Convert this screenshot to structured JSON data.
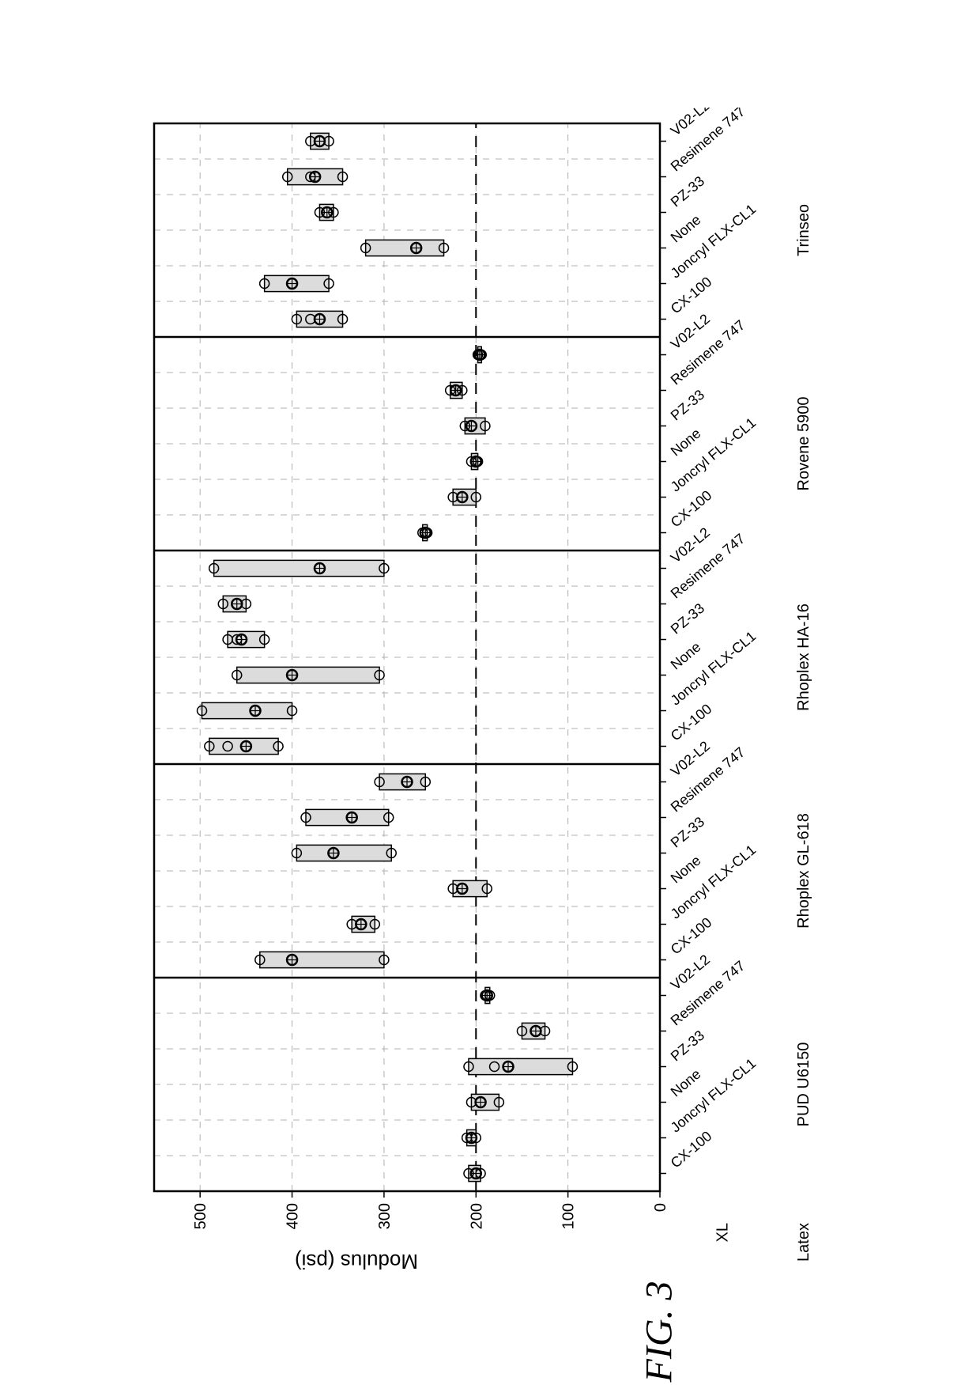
{
  "figure_label": "FIG. 3",
  "chart": {
    "type": "boxplot",
    "ylabel": "Modulus (psi)",
    "row_labels": [
      "XL",
      "Latex"
    ],
    "ylim": [
      0,
      550
    ],
    "ytick_step": 100,
    "yticks": [
      0,
      100,
      200,
      300,
      400,
      500
    ],
    "reference_line": 200,
    "grid_color": "#b0b0b0",
    "panel_border_color": "#000000",
    "panel_bg": "#ffffff",
    "box_fill": "#dcdcdc",
    "box_stroke": "#000000",
    "point_stroke": "#000000",
    "point_fill": "none",
    "tick_fontsize": 20,
    "label_fontsize": 26,
    "xl_labels": [
      "CX-100",
      "Joncryl FLX-CL1",
      "None",
      "PZ-33",
      "Resimene 747",
      "V02-L2"
    ],
    "latex_groups": [
      {
        "name": "PUD U6150",
        "count": 6
      },
      {
        "name": "Rhoplex GL-618",
        "count": 6
      },
      {
        "name": "Rhoplex HA-16",
        "count": 6
      },
      {
        "name": "Rovene 5900",
        "count": 6
      },
      {
        "name": "Trinseo",
        "count": 6
      }
    ],
    "series": [
      {
        "group": "PUD U6150",
        "xl": "CX-100",
        "q1": 195,
        "med": 200,
        "q3": 208,
        "pts": [
          195,
          200,
          208
        ]
      },
      {
        "group": "PUD U6150",
        "xl": "Joncryl FLX-CL1",
        "q1": 200,
        "med": 205,
        "q3": 210,
        "pts": [
          200,
          205,
          210
        ]
      },
      {
        "group": "PUD U6150",
        "xl": "None",
        "q1": 175,
        "med": 195,
        "q3": 205,
        "pts": [
          175,
          195,
          205
        ]
      },
      {
        "group": "PUD U6150",
        "xl": "PZ-33",
        "q1": 95,
        "med": 165,
        "q3": 208,
        "pts": [
          95,
          165,
          180,
          208
        ]
      },
      {
        "group": "PUD U6150",
        "xl": "Resimene 747",
        "q1": 125,
        "med": 135,
        "q3": 150,
        "pts": [
          125,
          135,
          150
        ]
      },
      {
        "group": "PUD U6150",
        "xl": "V02-L2",
        "q1": 185,
        "med": 188,
        "q3": 190,
        "pts": [
          185,
          188,
          190
        ]
      },
      {
        "group": "Rhoplex GL-618",
        "xl": "CX-100",
        "q1": 300,
        "med": 400,
        "q3": 435,
        "pts": [
          300,
          400,
          435
        ]
      },
      {
        "group": "Rhoplex GL-618",
        "xl": "Joncryl FLX-CL1",
        "q1": 310,
        "med": 325,
        "q3": 335,
        "pts": [
          310,
          325,
          335
        ]
      },
      {
        "group": "Rhoplex GL-618",
        "xl": "None",
        "q1": 188,
        "med": 215,
        "q3": 225,
        "pts": [
          188,
          215,
          225
        ]
      },
      {
        "group": "Rhoplex GL-618",
        "xl": "PZ-33",
        "q1": 292,
        "med": 355,
        "q3": 395,
        "pts": [
          292,
          355,
          395
        ]
      },
      {
        "group": "Rhoplex GL-618",
        "xl": "Resimene 747",
        "q1": 295,
        "med": 335,
        "q3": 385,
        "pts": [
          295,
          335,
          385
        ]
      },
      {
        "group": "Rhoplex GL-618",
        "xl": "V02-L2",
        "q1": 255,
        "med": 275,
        "q3": 305,
        "pts": [
          255,
          275,
          305
        ]
      },
      {
        "group": "Rhoplex HA-16",
        "xl": "CX-100",
        "q1": 415,
        "med": 450,
        "q3": 490,
        "pts": [
          415,
          450,
          470,
          490
        ]
      },
      {
        "group": "Rhoplex HA-16",
        "xl": "Joncryl FLX-CL1",
        "q1": 400,
        "med": 440,
        "q3": 498,
        "pts": [
          400,
          440,
          498
        ]
      },
      {
        "group": "Rhoplex HA-16",
        "xl": "None",
        "q1": 305,
        "med": 400,
        "q3": 460,
        "pts": [
          305,
          400,
          460
        ]
      },
      {
        "group": "Rhoplex HA-16",
        "xl": "PZ-33",
        "q1": 430,
        "med": 455,
        "q3": 470,
        "pts": [
          430,
          455,
          460,
          470
        ]
      },
      {
        "group": "Rhoplex HA-16",
        "xl": "Resimene 747",
        "q1": 450,
        "med": 460,
        "q3": 475,
        "pts": [
          450,
          460,
          475
        ]
      },
      {
        "group": "Rhoplex HA-16",
        "xl": "V02-L2",
        "q1": 300,
        "med": 370,
        "q3": 485,
        "pts": [
          300,
          370,
          485
        ]
      },
      {
        "group": "Rovene 5900",
        "xl": "CX-100",
        "q1": 253,
        "med": 255,
        "q3": 258,
        "pts": [
          253,
          255,
          258
        ]
      },
      {
        "group": "Rovene 5900",
        "xl": "Joncryl FLX-CL1",
        "q1": 200,
        "med": 215,
        "q3": 225,
        "pts": [
          200,
          215,
          225
        ]
      },
      {
        "group": "Rovene 5900",
        "xl": "None",
        "q1": 198,
        "med": 200,
        "q3": 205,
        "pts": [
          198,
          200,
          205
        ]
      },
      {
        "group": "Rovene 5900",
        "xl": "PZ-33",
        "q1": 190,
        "med": 205,
        "q3": 212,
        "pts": [
          190,
          205,
          212
        ]
      },
      {
        "group": "Rovene 5900",
        "xl": "Resimene 747",
        "q1": 215,
        "med": 222,
        "q3": 228,
        "pts": [
          215,
          222,
          228
        ]
      },
      {
        "group": "Rovene 5900",
        "xl": "V02-L2",
        "q1": 194,
        "med": 196,
        "q3": 198,
        "pts": [
          194,
          196,
          198
        ]
      },
      {
        "group": "Trinseo",
        "xl": "CX-100",
        "q1": 345,
        "med": 370,
        "q3": 395,
        "pts": [
          345,
          370,
          380,
          395
        ]
      },
      {
        "group": "Trinseo",
        "xl": "Joncryl FLX-CL1",
        "q1": 360,
        "med": 400,
        "q3": 430,
        "pts": [
          360,
          400,
          430
        ]
      },
      {
        "group": "Trinseo",
        "xl": "None",
        "q1": 235,
        "med": 265,
        "q3": 320,
        "pts": [
          235,
          265,
          320
        ]
      },
      {
        "group": "Trinseo",
        "xl": "PZ-33",
        "q1": 355,
        "med": 362,
        "q3": 370,
        "pts": [
          355,
          362,
          370
        ]
      },
      {
        "group": "Trinseo",
        "xl": "Resimene 747",
        "q1": 345,
        "med": 375,
        "q3": 405,
        "pts": [
          345,
          375,
          380,
          405
        ]
      },
      {
        "group": "Trinseo",
        "xl": "V02-L2",
        "q1": 360,
        "med": 370,
        "q3": 380,
        "pts": [
          360,
          370,
          380
        ]
      }
    ]
  }
}
